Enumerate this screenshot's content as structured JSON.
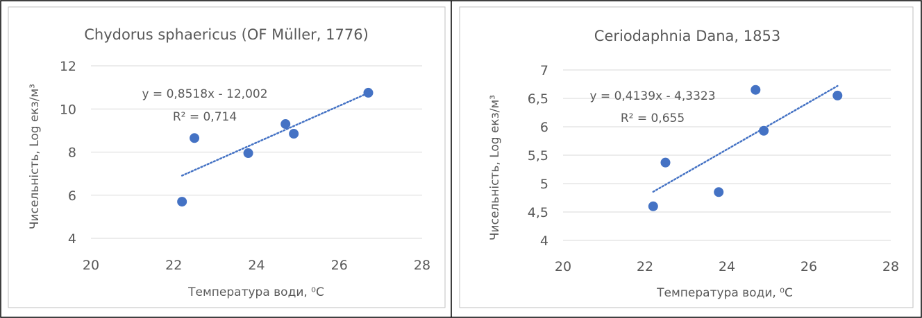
{
  "colors": {
    "marker": "#4472C4",
    "grid": "#D9D9D9",
    "text": "#595959",
    "border": "#000000",
    "panel_border": "#BFBFBF"
  },
  "chart_data": [
    {
      "type": "scatter",
      "title": "Chydorus sphaericus (OF Müller, 1776)",
      "xlabel": "Температура води, ⁰С",
      "ylabel": "Чисельність, Log екз/м³",
      "xlim": [
        20,
        28
      ],
      "ylim": [
        4,
        12
      ],
      "x_ticks": [
        20,
        22,
        24,
        26,
        28
      ],
      "y_ticks": [
        4,
        6,
        8,
        10,
        12
      ],
      "x_tick_labels": [
        "20",
        "22",
        "24",
        "26",
        "28"
      ],
      "y_tick_labels": [
        "4",
        "6",
        "8",
        "10",
        "12"
      ],
      "grid": "horizontal",
      "points": [
        {
          "x": 22.2,
          "y": 5.7
        },
        {
          "x": 22.5,
          "y": 8.65
        },
        {
          "x": 23.8,
          "y": 7.95
        },
        {
          "x": 24.7,
          "y": 9.3
        },
        {
          "x": 24.9,
          "y": 8.85
        },
        {
          "x": 26.7,
          "y": 10.75
        }
      ],
      "trendline": {
        "type": "linear",
        "slope": 0.8518,
        "intercept": -12.002,
        "x_range": [
          22.2,
          26.7
        ]
      },
      "equation_text": "y = 0,8518x - 12,002",
      "r2_text": "R² = 0,714"
    },
    {
      "type": "scatter",
      "title": "Ceriodaphnia Dana, 1853",
      "xlabel": "Температура води, ⁰С",
      "ylabel": "Чисельність, Log екз/м³",
      "xlim": [
        20,
        28
      ],
      "ylim": [
        4,
        7
      ],
      "x_ticks": [
        20,
        22,
        24,
        26,
        28
      ],
      "y_ticks": [
        4,
        4.5,
        5,
        5.5,
        6,
        6.5,
        7
      ],
      "x_tick_labels": [
        "20",
        "22",
        "24",
        "26",
        "28"
      ],
      "y_tick_labels": [
        "4",
        "4,5",
        "5",
        "5,5",
        "6",
        "6,5",
        "7"
      ],
      "grid": "horizontal",
      "points": [
        {
          "x": 22.2,
          "y": 4.6
        },
        {
          "x": 22.5,
          "y": 5.37
        },
        {
          "x": 23.8,
          "y": 4.85
        },
        {
          "x": 24.7,
          "y": 6.65
        },
        {
          "x": 24.9,
          "y": 5.93
        },
        {
          "x": 26.7,
          "y": 6.55
        }
      ],
      "trendline": {
        "type": "linear",
        "slope": 0.4139,
        "intercept": -4.3323,
        "x_range": [
          22.2,
          26.7
        ]
      },
      "equation_text": "y = 0,4139x - 4,3323",
      "r2_text": "R² = 0,655"
    }
  ]
}
